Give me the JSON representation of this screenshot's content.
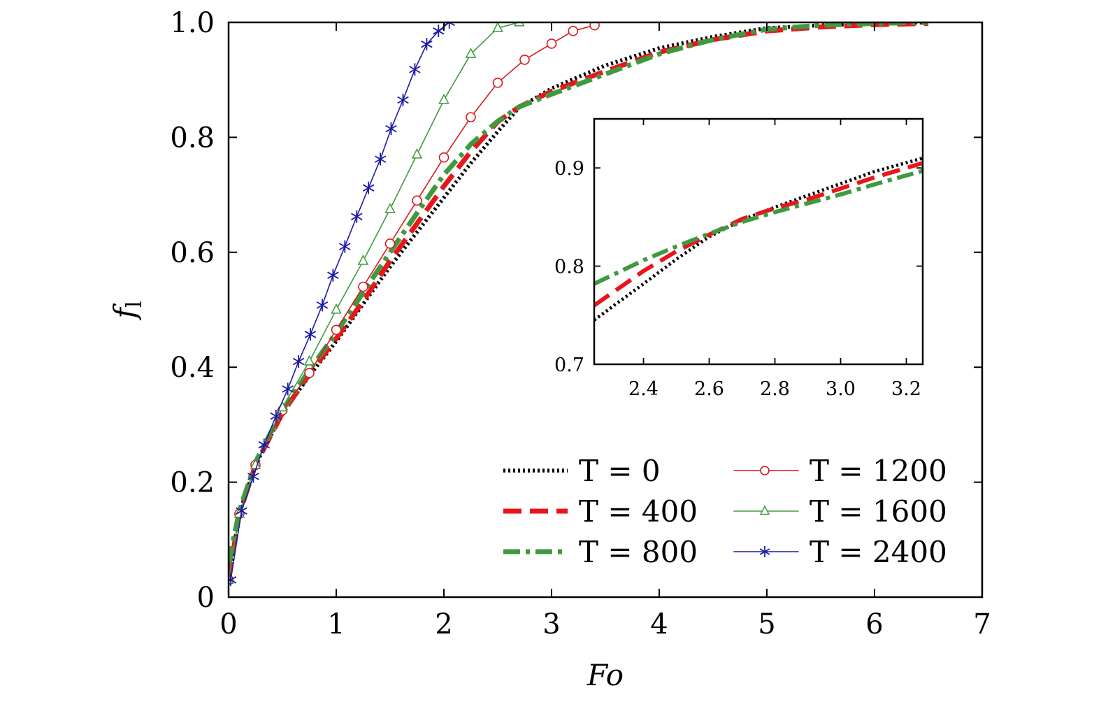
{
  "chart_data": {
    "type": "line",
    "xlabel": "Fo",
    "ylabel": "f",
    "ylabel_subscript": "l",
    "xlim": [
      0,
      7
    ],
    "ylim": [
      0,
      1
    ],
    "xticks": [
      "0",
      "1",
      "2",
      "3",
      "4",
      "5",
      "6",
      "7"
    ],
    "yticks": [
      "0",
      "0.2",
      "0.4",
      "0.6",
      "0.8",
      "1.0"
    ],
    "legend_position": "lower-right",
    "series": [
      {
        "name": "T = 0",
        "color": "#000000",
        "style": "dotted",
        "marker": "none",
        "x": [
          0,
          0.1,
          0.25,
          0.5,
          0.75,
          1.0,
          1.25,
          1.5,
          1.75,
          2.0,
          2.25,
          2.5,
          2.7,
          3.0,
          3.5,
          4.0,
          4.5,
          5.0,
          5.5,
          6.0,
          6.5
        ],
        "y": [
          0.03,
          0.145,
          0.23,
          0.32,
          0.385,
          0.445,
          0.51,
          0.575,
          0.635,
          0.695,
          0.755,
          0.81,
          0.852,
          0.885,
          0.925,
          0.955,
          0.975,
          0.99,
          0.995,
          0.998,
          1.0
        ]
      },
      {
        "name": "T = 400",
        "color": "#e8161c",
        "style": "dashed",
        "marker": "none",
        "x": [
          0,
          0.1,
          0.25,
          0.5,
          0.75,
          1.0,
          1.25,
          1.5,
          1.75,
          2.0,
          2.25,
          2.5,
          2.7,
          3.0,
          3.5,
          4.0,
          4.5,
          5.0,
          5.5,
          6.0,
          6.5
        ],
        "y": [
          0.03,
          0.145,
          0.23,
          0.32,
          0.388,
          0.45,
          0.515,
          0.585,
          0.65,
          0.715,
          0.775,
          0.827,
          0.853,
          0.88,
          0.915,
          0.948,
          0.97,
          0.985,
          0.992,
          0.996,
          0.998
        ]
      },
      {
        "name": "T = 800",
        "color": "#3f9a3f",
        "style": "dashdot",
        "marker": "none",
        "x": [
          0,
          0.1,
          0.25,
          0.5,
          0.75,
          1.0,
          1.25,
          1.5,
          1.75,
          2.0,
          2.25,
          2.5,
          2.7,
          3.0,
          3.5,
          4.0,
          4.5,
          5.0,
          5.5,
          6.0,
          6.5
        ],
        "y": [
          0.06,
          0.15,
          0.235,
          0.325,
          0.395,
          0.46,
          0.53,
          0.6,
          0.668,
          0.735,
          0.788,
          0.828,
          0.853,
          0.875,
          0.91,
          0.945,
          0.97,
          0.988,
          0.995,
          0.998,
          1.0
        ]
      },
      {
        "name": "T = 1200",
        "color": "#d7191c",
        "style": "solid",
        "marker": "circle",
        "x": [
          0,
          0.1,
          0.25,
          0.5,
          0.75,
          1.0,
          1.25,
          1.5,
          1.75,
          2.0,
          2.25,
          2.5,
          2.75,
          3.0,
          3.2,
          3.4
        ],
        "y": [
          0.03,
          0.145,
          0.23,
          0.325,
          0.39,
          0.465,
          0.54,
          0.615,
          0.69,
          0.765,
          0.835,
          0.895,
          0.935,
          0.963,
          0.985,
          0.995
        ]
      },
      {
        "name": "T = 1600",
        "color": "#3f9a3f",
        "style": "solid",
        "marker": "triangle",
        "x": [
          0,
          0.1,
          0.25,
          0.5,
          0.75,
          1.0,
          1.25,
          1.5,
          1.75,
          2.0,
          2.25,
          2.5,
          2.7
        ],
        "y": [
          0.03,
          0.145,
          0.23,
          0.33,
          0.41,
          0.5,
          0.585,
          0.675,
          0.77,
          0.865,
          0.945,
          0.99,
          1.0
        ]
      },
      {
        "name": "T = 2400",
        "color": "#1a1aaa",
        "style": "solid",
        "marker": "star",
        "x": [
          0.02,
          0.12,
          0.23,
          0.33,
          0.44,
          0.55,
          0.65,
          0.76,
          0.87,
          0.97,
          1.08,
          1.19,
          1.3,
          1.41,
          1.51,
          1.62,
          1.73,
          1.84,
          1.95,
          2.05
        ],
        "y": [
          0.03,
          0.15,
          0.21,
          0.265,
          0.315,
          0.362,
          0.41,
          0.457,
          0.508,
          0.56,
          0.61,
          0.662,
          0.712,
          0.762,
          0.815,
          0.865,
          0.918,
          0.962,
          0.985,
          1.0
        ]
      }
    ],
    "inset": {
      "xlim": [
        2.25,
        3.25
      ],
      "ylim": [
        0.7,
        0.95
      ],
      "xticks": [
        "2.4",
        "2.6",
        "2.8",
        "3.0",
        "3.2"
      ],
      "yticks": [
        "0.7",
        "0.8",
        "0.9"
      ],
      "series": [
        {
          "name": "T = 0",
          "x": [
            2.25,
            2.4,
            2.5,
            2.6,
            2.7,
            2.8,
            2.9,
            3.0,
            3.1,
            3.25
          ],
          "y": [
            0.745,
            0.782,
            0.807,
            0.83,
            0.847,
            0.86,
            0.872,
            0.884,
            0.896,
            0.91
          ]
        },
        {
          "name": "T = 400",
          "x": [
            2.25,
            2.4,
            2.5,
            2.6,
            2.7,
            2.8,
            2.9,
            3.0,
            3.1,
            3.25
          ],
          "y": [
            0.76,
            0.795,
            0.815,
            0.832,
            0.848,
            0.859,
            0.868,
            0.879,
            0.89,
            0.905
          ]
        },
        {
          "name": "T = 800",
          "x": [
            2.25,
            2.4,
            2.5,
            2.6,
            2.7,
            2.8,
            2.9,
            3.0,
            3.1,
            3.25
          ],
          "y": [
            0.782,
            0.806,
            0.82,
            0.833,
            0.845,
            0.855,
            0.864,
            0.873,
            0.883,
            0.897
          ]
        }
      ]
    }
  }
}
